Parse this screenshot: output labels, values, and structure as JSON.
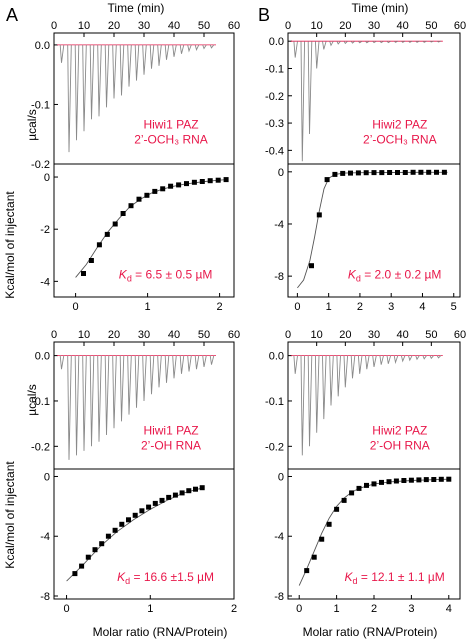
{
  "figure": {
    "panel_letters": [
      "A",
      "B"
    ],
    "top_axis_label": "Time (min)",
    "thermogram_ylabel": "µcal/s",
    "binding_ylabel": "Kcal/mol of injectant",
    "bottom_xlabel": "Molar ratio (RNA/Protein)"
  },
  "colors": {
    "annotation": "#e8174a",
    "baseline": "#e8174a",
    "trace": "#8a8a8a",
    "points": "#000000",
    "fit": "#555555",
    "axes": "#000000"
  },
  "chart_data": [
    {
      "id": "A-top",
      "type": "line",
      "kind": "thermogram",
      "xlim": [
        0,
        60
      ],
      "ylim": [
        -0.2,
        0.02
      ],
      "xticks": [
        0,
        10,
        20,
        30,
        40,
        50,
        60
      ],
      "yticks": [
        0.0,
        -0.1,
        -0.2
      ],
      "ytick_labels": [
        "0.0",
        "-0.1",
        "-0.2"
      ],
      "annotation": [
        "Hiwi1 PAZ",
        "2’-OCH₃ RNA"
      ],
      "injection_times": [
        2.5,
        5,
        7.5,
        10,
        12.5,
        15,
        17.5,
        20,
        22.5,
        25,
        27.5,
        30,
        32.5,
        35,
        37.5,
        40,
        42.5,
        45,
        47.5,
        50,
        52.5
      ],
      "peaks": [
        -0.03,
        -0.18,
        -0.16,
        -0.145,
        -0.125,
        -0.12,
        -0.105,
        -0.09,
        -0.085,
        -0.07,
        -0.06,
        -0.05,
        -0.04,
        -0.035,
        -0.025,
        -0.02,
        -0.015,
        -0.01,
        -0.008,
        -0.006,
        -0.005
      ]
    },
    {
      "id": "A-bottom",
      "type": "scatter",
      "kind": "binding",
      "xlim": [
        -0.3,
        2.2
      ],
      "ylim": [
        -4.6,
        0.5
      ],
      "xticks": [
        0,
        1,
        2
      ],
      "yticks": [
        0,
        -2,
        -4
      ],
      "ytick_labels": [
        "0",
        "-2",
        "-4"
      ],
      "x": [
        0.11,
        0.22,
        0.33,
        0.44,
        0.55,
        0.66,
        0.77,
        0.88,
        0.99,
        1.1,
        1.21,
        1.32,
        1.43,
        1.54,
        1.65,
        1.76,
        1.87,
        1.98,
        2.09
      ],
      "y": [
        -3.7,
        -3.2,
        -2.6,
        -2.2,
        -1.8,
        -1.4,
        -1.1,
        -0.85,
        -0.7,
        -0.55,
        -0.45,
        -0.35,
        -0.3,
        -0.25,
        -0.2,
        -0.17,
        -0.14,
        -0.12,
        -0.1
      ],
      "fit_x": [
        0.0,
        0.15,
        0.3,
        0.45,
        0.6,
        0.75,
        0.9,
        1.05,
        1.2,
        1.35,
        1.5,
        1.65,
        1.8,
        1.95,
        2.1
      ],
      "fit_y": [
        -3.85,
        -3.35,
        -2.7,
        -2.1,
        -1.6,
        -1.15,
        -0.85,
        -0.62,
        -0.47,
        -0.36,
        -0.28,
        -0.22,
        -0.17,
        -0.13,
        -0.1
      ],
      "kd_prefix": "K",
      "kd_sub": "d",
      "kd_value": " = 6.5 ± 0.5 µM"
    },
    {
      "id": "B-top",
      "type": "line",
      "kind": "thermogram",
      "xlim": [
        0,
        60
      ],
      "ylim": [
        -0.45,
        0.03
      ],
      "xticks": [
        0,
        10,
        20,
        30,
        40,
        50,
        60
      ],
      "yticks": [
        0.0,
        -0.1,
        -0.2,
        -0.3,
        -0.4
      ],
      "ytick_labels": [
        "0.0",
        "-0.1",
        "-0.2",
        "-0.3",
        "-0.4"
      ],
      "annotation": [
        "Hiwi2 PAZ",
        "2’-OCH₃ RNA"
      ],
      "injection_times": [
        2.5,
        5,
        7.5,
        10,
        12.5,
        15,
        17.5,
        20,
        22.5,
        25,
        27.5,
        30,
        32.5,
        35,
        37.5,
        40,
        42.5,
        45,
        47.5,
        50,
        52.5
      ],
      "peaks": [
        -0.06,
        -0.44,
        -0.34,
        -0.1,
        -0.03,
        -0.015,
        -0.01,
        -0.008,
        -0.007,
        -0.006,
        -0.006,
        -0.005,
        -0.005,
        -0.005,
        -0.004,
        -0.004,
        -0.004,
        -0.004,
        -0.004,
        -0.003,
        -0.003
      ]
    },
    {
      "id": "B-bottom",
      "type": "scatter",
      "kind": "binding",
      "xlim": [
        -0.3,
        5.2
      ],
      "ylim": [
        -9.6,
        0.6
      ],
      "xticks": [
        0,
        1,
        2,
        3,
        4,
        5
      ],
      "yticks": [
        0,
        -4,
        -8
      ],
      "ytick_labels": [
        "0",
        "-4",
        "-8"
      ],
      "x": [
        0.45,
        0.7,
        0.95,
        1.2,
        1.45,
        1.7,
        1.95,
        2.2,
        2.45,
        2.7,
        2.95,
        3.2,
        3.45,
        3.7,
        3.95,
        4.2,
        4.45,
        4.7
      ],
      "y": [
        -7.2,
        -3.3,
        -0.6,
        -0.2,
        -0.12,
        -0.1,
        -0.08,
        -0.07,
        -0.06,
        -0.06,
        -0.05,
        -0.05,
        -0.05,
        -0.04,
        -0.04,
        -0.04,
        -0.04,
        -0.04
      ],
      "fit_x": [
        0.0,
        0.2,
        0.4,
        0.55,
        0.7,
        0.85,
        1.0,
        1.2,
        1.5,
        2.0,
        3.0,
        4.0,
        4.8
      ],
      "fit_y": [
        -8.9,
        -8.3,
        -6.8,
        -5.0,
        -3.0,
        -1.3,
        -0.5,
        -0.2,
        -0.1,
        -0.07,
        -0.05,
        -0.04,
        -0.04
      ],
      "kd_prefix": "K",
      "kd_sub": "d",
      "kd_value": " = 2.0 ± 0.2 µM"
    },
    {
      "id": "A-top2",
      "type": "line",
      "kind": "thermogram",
      "xlim": [
        0,
        60
      ],
      "ylim": [
        -0.25,
        0.03
      ],
      "xticks": [
        0,
        10,
        20,
        30,
        40,
        50,
        60
      ],
      "yticks": [
        0.0,
        -0.1,
        -0.2
      ],
      "ytick_labels": [
        "0.0",
        "-0.1",
        "-0.2"
      ],
      "annotation": [
        "Hiwi1 PAZ",
        "2’-OH RNA"
      ],
      "injection_times": [
        2.5,
        5,
        7.5,
        10,
        12.5,
        15,
        17.5,
        20,
        22.5,
        25,
        27.5,
        30,
        32.5,
        35,
        37.5,
        40,
        42.5,
        45,
        47.5,
        50,
        52.5
      ],
      "peaks": [
        -0.03,
        -0.23,
        -0.22,
        -0.21,
        -0.2,
        -0.19,
        -0.175,
        -0.16,
        -0.145,
        -0.13,
        -0.115,
        -0.1,
        -0.085,
        -0.07,
        -0.06,
        -0.05,
        -0.04,
        -0.035,
        -0.03,
        -0.025,
        -0.02
      ]
    },
    {
      "id": "A-bottom2",
      "type": "scatter",
      "kind": "binding",
      "xlim": [
        -0.15,
        2.0
      ],
      "ylim": [
        -8.2,
        0.5
      ],
      "xticks": [
        0,
        1,
        2
      ],
      "yticks": [
        0,
        -4,
        -8
      ],
      "ytick_labels": [
        "0",
        "-4",
        "-8"
      ],
      "x": [
        0.1,
        0.18,
        0.26,
        0.34,
        0.42,
        0.5,
        0.58,
        0.66,
        0.74,
        0.82,
        0.9,
        0.98,
        1.06,
        1.14,
        1.22,
        1.3,
        1.38,
        1.46,
        1.54,
        1.62
      ],
      "y": [
        -6.5,
        -6.0,
        -5.4,
        -4.9,
        -4.5,
        -4.0,
        -3.6,
        -3.2,
        -2.9,
        -2.6,
        -2.3,
        -2.05,
        -1.8,
        -1.6,
        -1.4,
        -1.25,
        -1.1,
        -0.95,
        -0.85,
        -0.75
      ],
      "fit_x": [
        0.0,
        0.2,
        0.4,
        0.6,
        0.8,
        1.0,
        1.2,
        1.4,
        1.6
      ],
      "fit_y": [
        -7.0,
        -5.9,
        -4.7,
        -3.7,
        -2.9,
        -2.2,
        -1.6,
        -1.1,
        -0.8
      ],
      "kd_prefix": "K",
      "kd_sub": "d",
      "kd_value": " = 16.6 ±1.5 µM"
    },
    {
      "id": "B-top2",
      "type": "line",
      "kind": "thermogram",
      "xlim": [
        0,
        60
      ],
      "ylim": [
        -0.25,
        0.03
      ],
      "xticks": [
        0,
        10,
        20,
        30,
        40,
        50,
        60
      ],
      "yticks": [
        0.0,
        -0.1,
        -0.2
      ],
      "ytick_labels": [
        "0.0",
        "-0.1",
        "-0.2"
      ],
      "annotation": [
        "Hiwi2 PAZ",
        "2’-OH RNA"
      ],
      "injection_times": [
        2.5,
        5,
        7.5,
        10,
        12.5,
        15,
        17.5,
        20,
        22.5,
        25,
        27.5,
        30,
        32.5,
        35,
        37.5,
        40,
        42.5,
        45,
        47.5,
        50,
        52.5
      ],
      "peaks": [
        -0.04,
        -0.22,
        -0.2,
        -0.17,
        -0.14,
        -0.11,
        -0.09,
        -0.07,
        -0.05,
        -0.04,
        -0.03,
        -0.025,
        -0.02,
        -0.018,
        -0.015,
        -0.012,
        -0.01,
        -0.008,
        -0.007,
        -0.006,
        -0.005
      ]
    },
    {
      "id": "B-bottom2",
      "type": "scatter",
      "kind": "binding",
      "xlim": [
        -0.3,
        4.3
      ],
      "ylim": [
        -8.2,
        0.5
      ],
      "xticks": [
        0,
        1,
        2,
        3,
        4
      ],
      "yticks": [
        0,
        -4,
        -8
      ],
      "ytick_labels": [
        "0",
        "-4",
        "-8"
      ],
      "x": [
        0.2,
        0.4,
        0.6,
        0.8,
        1.0,
        1.2,
        1.4,
        1.6,
        1.8,
        2.0,
        2.2,
        2.4,
        2.6,
        2.8,
        3.0,
        3.2,
        3.4,
        3.6,
        3.8,
        4.0
      ],
      "y": [
        -6.3,
        -5.4,
        -4.2,
        -3.2,
        -2.2,
        -1.6,
        -1.1,
        -0.8,
        -0.6,
        -0.5,
        -0.4,
        -0.35,
        -0.3,
        -0.27,
        -0.25,
        -0.23,
        -0.21,
        -0.2,
        -0.19,
        -0.18
      ],
      "fit_x": [
        0.0,
        0.2,
        0.4,
        0.6,
        0.8,
        1.0,
        1.2,
        1.4,
        1.6,
        2.0,
        2.5,
        3.0,
        3.5,
        4.0
      ],
      "fit_y": [
        -7.3,
        -6.2,
        -5.0,
        -3.8,
        -2.8,
        -2.0,
        -1.45,
        -1.05,
        -0.8,
        -0.5,
        -0.35,
        -0.27,
        -0.22,
        -0.18
      ],
      "kd_prefix": "K",
      "kd_sub": "d",
      "kd_value": " = 12.1 ± 1.1 µM"
    }
  ]
}
